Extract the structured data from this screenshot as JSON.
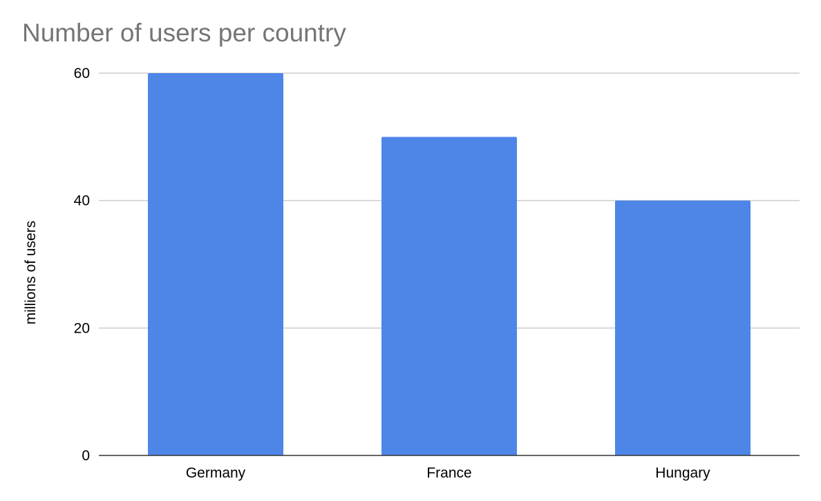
{
  "chart_data": {
    "type": "bar",
    "title": "Number of users per country",
    "xlabel": "",
    "ylabel": "millions of users",
    "categories": [
      "Germany",
      "France",
      "Hungary"
    ],
    "values": [
      60,
      50,
      40
    ],
    "ylim": [
      0,
      60
    ],
    "yticks": [
      0,
      20,
      40,
      60
    ],
    "grid": true,
    "legend": "none",
    "bar_color": "#4e86e8"
  }
}
